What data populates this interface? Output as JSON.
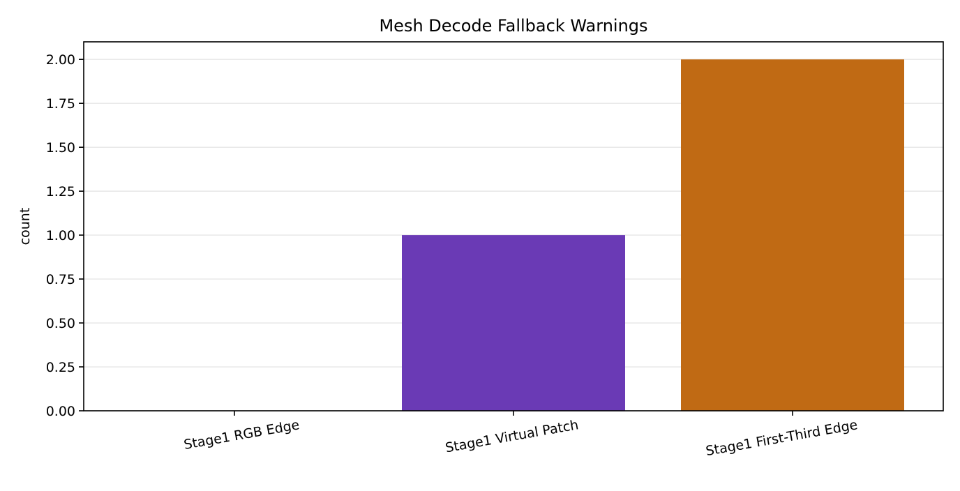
{
  "chart_data": {
    "type": "bar",
    "title": "Mesh Decode Fallback Warnings",
    "xlabel": "",
    "ylabel": "count",
    "categories": [
      "Stage1 RGB Edge",
      "Stage1 Virtual Patch",
      "Stage1 First-Third Edge"
    ],
    "values": [
      0,
      1,
      2
    ],
    "colors": [
      "#6a3ab5",
      "#6a3ab5",
      "#c06a14"
    ],
    "ylim": [
      0,
      2.1
    ],
    "yticks": [
      0,
      0.25,
      0.5,
      0.75,
      1.0,
      1.25,
      1.5,
      1.75,
      2.0
    ],
    "ytick_labels": [
      "0.00",
      "0.25",
      "0.50",
      "0.75",
      "1.00",
      "1.25",
      "1.50",
      "1.75",
      "2.00"
    ],
    "grid": "horizontal",
    "legend": "none"
  }
}
